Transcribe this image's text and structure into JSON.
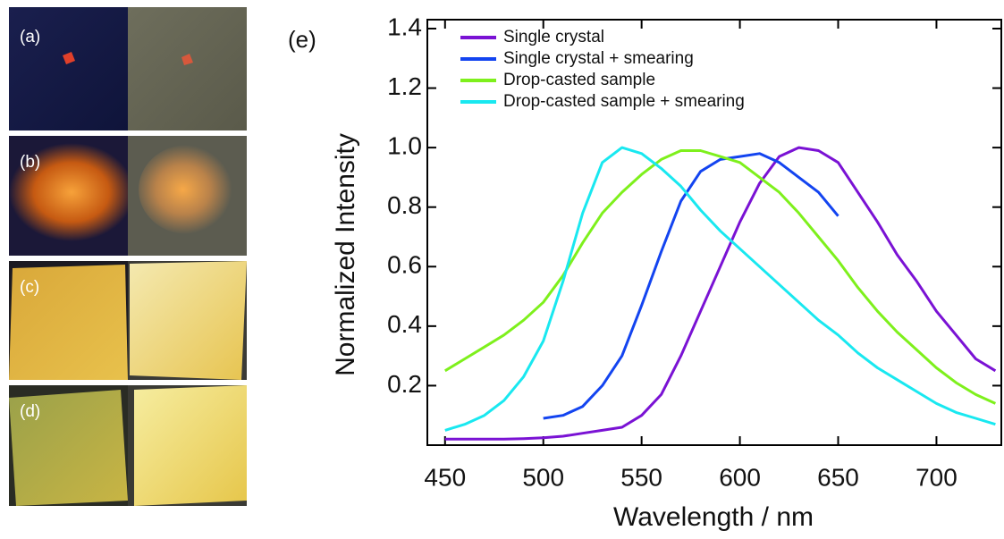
{
  "panel_labels": [
    "(a)",
    "(b)",
    "(c)",
    "(d)"
  ],
  "chart_data": {
    "type": "line",
    "label": "(e)",
    "x_label": "Wavelength / nm",
    "y_label": "Normalized Intensity",
    "x": [
      450,
      460,
      470,
      480,
      490,
      500,
      510,
      520,
      530,
      540,
      550,
      560,
      570,
      580,
      590,
      600,
      610,
      620,
      630,
      640,
      650,
      660,
      670,
      680,
      690,
      700,
      710,
      720,
      730
    ],
    "series": [
      {
        "name": "Single crystal",
        "color": "#7a12d4",
        "values": [
          0.02,
          0.02,
          0.02,
          0.02,
          0.022,
          0.025,
          0.03,
          0.04,
          0.05,
          0.06,
          0.1,
          0.17,
          0.3,
          0.45,
          0.6,
          0.75,
          0.88,
          0.97,
          1.0,
          0.99,
          0.95,
          0.85,
          0.75,
          0.64,
          0.55,
          0.45,
          0.37,
          0.29,
          0.25
        ]
      },
      {
        "name": "Single crystal + smearing",
        "color": "#1344f0",
        "values": [
          null,
          null,
          null,
          null,
          null,
          0.09,
          0.1,
          0.13,
          0.2,
          0.3,
          0.47,
          0.65,
          0.82,
          0.92,
          0.96,
          0.97,
          0.98,
          0.95,
          0.9,
          0.85,
          0.77,
          null,
          null,
          null,
          null,
          null,
          null,
          null,
          null
        ]
      },
      {
        "name": "Drop-casted sample",
        "color": "#7ef01c",
        "values": [
          0.25,
          0.29,
          0.33,
          0.37,
          0.42,
          0.48,
          0.57,
          0.68,
          0.78,
          0.85,
          0.91,
          0.96,
          0.99,
          0.99,
          0.97,
          0.95,
          0.9,
          0.85,
          0.78,
          0.7,
          0.62,
          0.53,
          0.45,
          0.38,
          0.32,
          0.26,
          0.21,
          0.17,
          0.14
        ]
      },
      {
        "name": "Drop-casted sample + smearing",
        "color": "#19e8f0",
        "values": [
          0.05,
          0.07,
          0.1,
          0.15,
          0.23,
          0.35,
          0.55,
          0.78,
          0.95,
          1.0,
          0.98,
          0.93,
          0.87,
          0.79,
          0.72,
          0.66,
          0.6,
          0.54,
          0.48,
          0.42,
          0.37,
          0.31,
          0.26,
          0.22,
          0.18,
          0.14,
          0.11,
          0.09,
          0.07
        ]
      }
    ],
    "xlim": [
      441,
      733
    ],
    "xticks": [
      450,
      500,
      550,
      600,
      650,
      700
    ],
    "ylim": [
      0,
      1.43
    ],
    "yticks": [
      0.2,
      0.4,
      0.6,
      0.8,
      {
        "value": 1,
        "label": "1.0"
      },
      1.2,
      1.4
    ]
  }
}
